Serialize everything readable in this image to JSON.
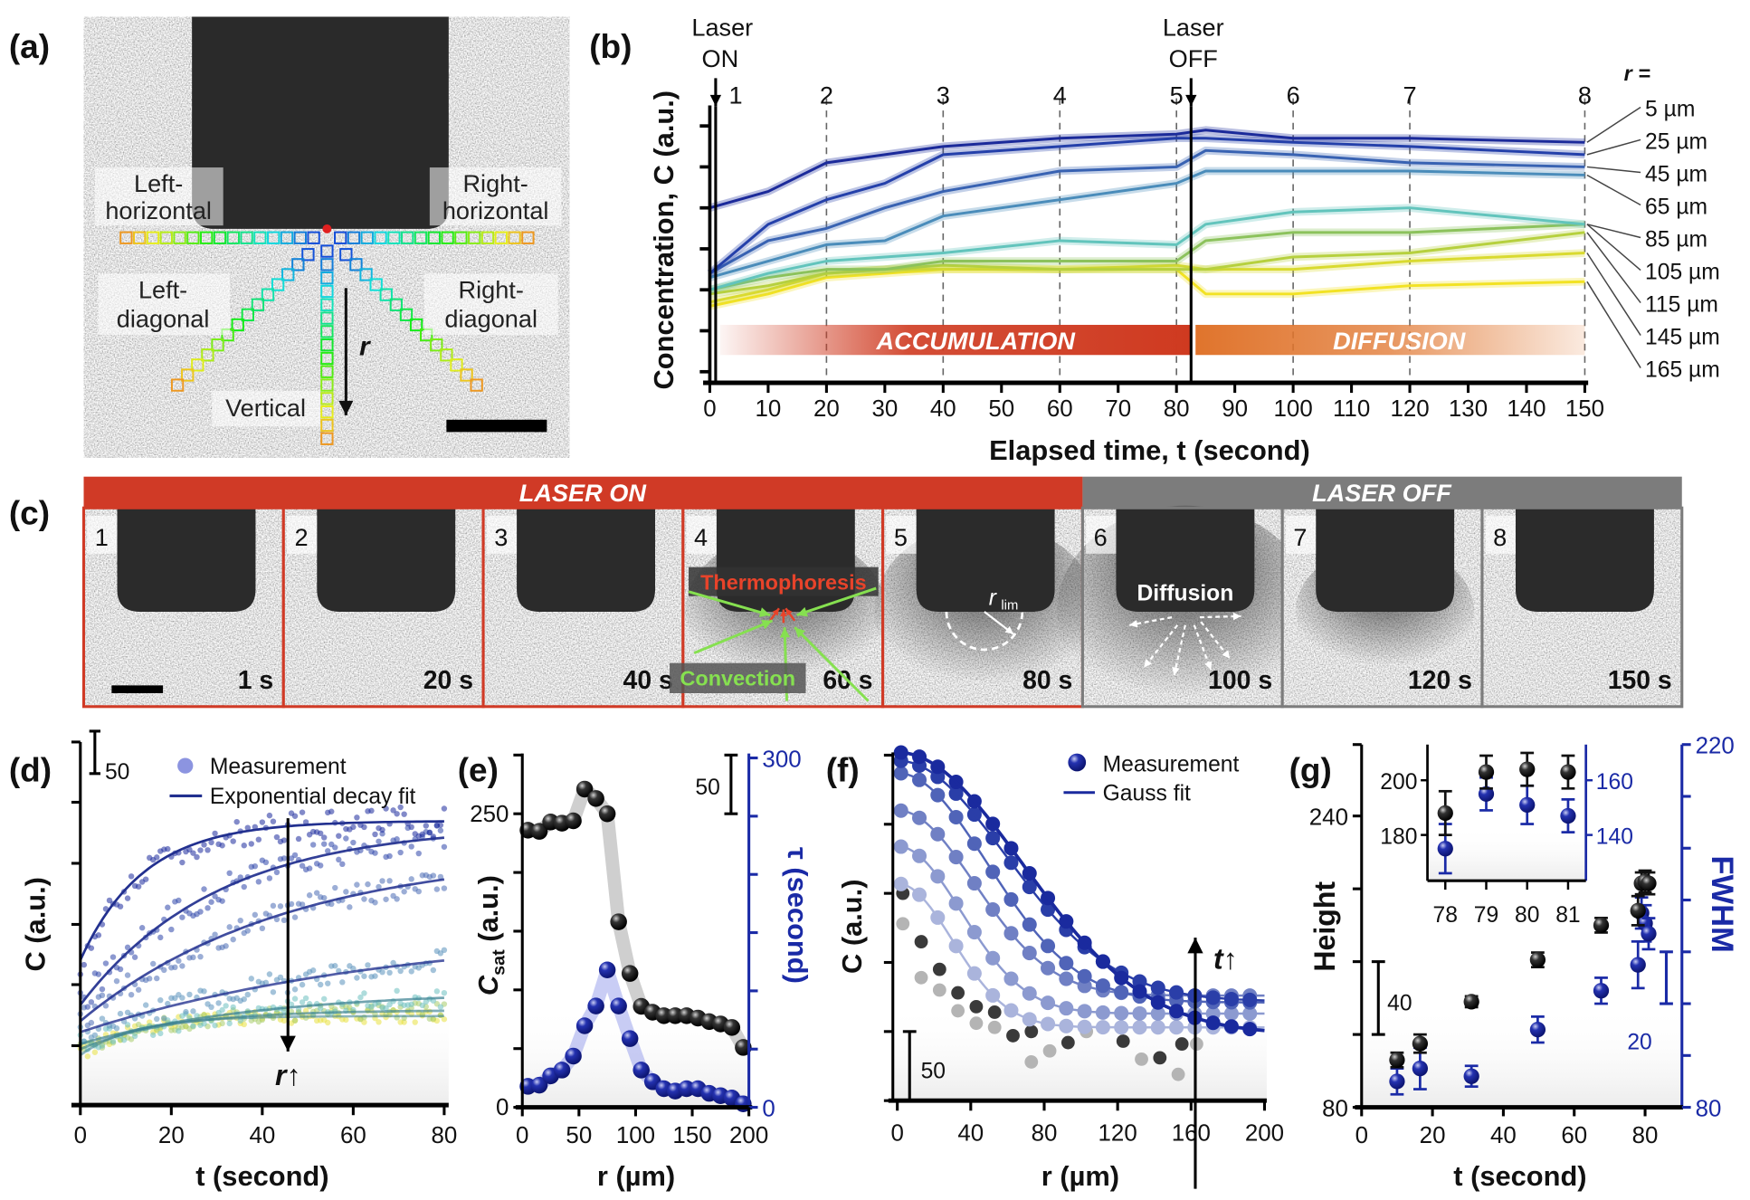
{
  "panel_labels": {
    "a": "(a)",
    "b": "(b)",
    "c": "(c)",
    "d": "(d)",
    "e": "(e)",
    "f": "(f)",
    "g": "(g)"
  },
  "panel_a": {
    "labels": {
      "left_horizontal": [
        "Left-",
        "horizontal"
      ],
      "right_horizontal": [
        "Right-",
        "horizontal"
      ],
      "left_diagonal": [
        "Left-",
        "diagonal"
      ],
      "right_diagonal": [
        "Right-",
        "diagonal"
      ],
      "vertical": "Vertical",
      "r": "r"
    }
  },
  "panel_c": {
    "laser_on": "LASER ON",
    "laser_off": "LASER OFF",
    "colors": {
      "laser_on": "#d03a26",
      "laser_off": "#7c7c7c"
    },
    "frames": [
      {
        "n": "1",
        "time": "1 s"
      },
      {
        "n": "2",
        "time": "20 s"
      },
      {
        "n": "3",
        "time": "40 s"
      },
      {
        "n": "4",
        "time": "60 s"
      },
      {
        "n": "5",
        "time": "80 s"
      },
      {
        "n": "6",
        "time": "100 s"
      },
      {
        "n": "7",
        "time": "120 s"
      },
      {
        "n": "8",
        "time": "150 s"
      }
    ],
    "annotations": {
      "thermophoresis": "Thermophoresis",
      "convection": "Convection",
      "diffusion": "Diffusion",
      "r_lim": "r",
      "r_lim_sub": "lim"
    }
  },
  "chart_data": [
    {
      "panel": "b",
      "type": "line",
      "xlabel": "Elapsed time, t (second)",
      "ylabel": "Concentration, C (a.u.)",
      "xlim": [
        0,
        150
      ],
      "xticks": [
        0,
        10,
        20,
        30,
        40,
        50,
        60,
        70,
        80,
        90,
        100,
        110,
        120,
        130,
        140,
        150
      ],
      "ylim": [
        -0.27,
        6.5
      ],
      "yticks_unlabeled": [
        0,
        1,
        2,
        3,
        4,
        5,
        6
      ],
      "markers": [
        {
          "label": [
            "Laser",
            "ON"
          ],
          "t": 1
        },
        {
          "label": [
            "Laser",
            "OFF"
          ],
          "t": 82.5
        }
      ],
      "frame_markers": [
        {
          "label": "1",
          "t": 1
        },
        {
          "label": "2",
          "t": 20
        },
        {
          "label": "3",
          "t": 40
        },
        {
          "label": "4",
          "t": 60
        },
        {
          "label": "5",
          "t": 80
        },
        {
          "label": "6",
          "t": 100
        },
        {
          "label": "7",
          "t": 120
        },
        {
          "label": "8",
          "t": 150
        }
      ],
      "phases": [
        {
          "label": "ACCUMULATION",
          "from": 1,
          "to": 82.5,
          "color": "#cf3a20"
        },
        {
          "label": "DIFFUSION",
          "from": 82.5,
          "to": 150,
          "color": "#e0742c"
        }
      ],
      "legend_title": "r =",
      "x": [
        0,
        10,
        20,
        30,
        40,
        60,
        80,
        85,
        100,
        120,
        150
      ],
      "series": [
        {
          "name": "5 µm",
          "color": "#1b2a9a",
          "values": [
            4.0,
            4.4,
            5.1,
            5.3,
            5.5,
            5.7,
            5.8,
            5.9,
            5.7,
            5.7,
            5.6
          ]
        },
        {
          "name": "25 µm",
          "color": "#2440aa",
          "values": [
            2.4,
            3.6,
            4.2,
            4.6,
            5.3,
            5.5,
            5.7,
            5.7,
            5.6,
            5.5,
            5.3
          ]
        },
        {
          "name": "45 µm",
          "color": "#3862b2",
          "values": [
            2.4,
            3.2,
            3.5,
            4.0,
            4.4,
            4.9,
            5.0,
            5.4,
            5.3,
            5.1,
            5.0
          ]
        },
        {
          "name": "65 µm",
          "color": "#4a8cba",
          "values": [
            2.3,
            2.7,
            3.1,
            3.2,
            3.8,
            4.2,
            4.6,
            4.9,
            4.9,
            4.9,
            4.8
          ]
        },
        {
          "name": "85 µm",
          "color": "#62c4bc",
          "values": [
            2.0,
            2.4,
            2.7,
            2.8,
            2.9,
            3.2,
            3.1,
            3.6,
            3.9,
            4.0,
            3.6
          ]
        },
        {
          "name": "105 µm",
          "color": "#8cc25c",
          "values": [
            2.0,
            2.3,
            2.5,
            2.5,
            2.7,
            2.7,
            2.7,
            3.2,
            3.4,
            3.4,
            3.6
          ]
        },
        {
          "name": "115 µm",
          "color": "#b6d03e",
          "values": [
            1.9,
            2.1,
            2.4,
            2.5,
            2.6,
            2.5,
            2.5,
            2.5,
            2.8,
            2.9,
            3.4
          ]
        },
        {
          "name": "145 µm",
          "color": "#d9da30",
          "values": [
            1.7,
            2.0,
            2.4,
            2.5,
            2.5,
            2.5,
            2.6,
            2.5,
            2.5,
            2.7,
            2.9
          ]
        },
        {
          "name": "165 µm",
          "color": "#f2e224",
          "values": [
            1.6,
            1.9,
            2.3,
            2.4,
            2.5,
            2.5,
            2.5,
            1.9,
            1.9,
            2.1,
            2.2
          ]
        }
      ]
    },
    {
      "panel": "d",
      "type": "scatter",
      "xlabel": "t (second)",
      "ylabel": "C (a.u.)",
      "xlim": [
        0,
        80
      ],
      "xticks": [
        0,
        20,
        40,
        60,
        80
      ],
      "ylim": [
        0,
        428
      ],
      "yticks_unlabeled": [
        70,
        142,
        213,
        285,
        357
      ],
      "scale_bar": "50",
      "scale_bar_value": 50,
      "legend": [
        "Measurement",
        "Exponential decay fit"
      ],
      "arrow_label": "r↑",
      "fits": [
        {
          "c0": 171,
          "csat": 335,
          "tau": 14,
          "color": "#1c2a9c"
        },
        {
          "c0": 118,
          "csat": 330,
          "tau": 30,
          "color": "#2e46aa"
        },
        {
          "c0": 99,
          "csat": 300,
          "tau": 45,
          "color": "#4a6cb4"
        },
        {
          "c0": 86,
          "csat": 210,
          "tau": 70,
          "color": "#5a92bc"
        },
        {
          "c0": 72,
          "csat": 135,
          "tau": 40,
          "color": "#6cc0c0"
        },
        {
          "c0": 66,
          "csat": 112,
          "tau": 20,
          "color": "#a8cc6a"
        },
        {
          "c0": 59,
          "csat": 105,
          "tau": 12,
          "color": "#e8e040"
        }
      ]
    },
    {
      "panel": "e",
      "type": "scatter",
      "xlabel": "r (µm)",
      "ylabel": {
        "main": "C",
        "sub": "sat",
        "rest": " (a.u.)"
      },
      "ylabel_right": "τ (second)",
      "xlim": [
        0,
        200
      ],
      "xticks": [
        0,
        50,
        100,
        150,
        200
      ],
      "ylim_left": [
        0,
        300
      ],
      "yticks_left": [
        0,
        50,
        100,
        150,
        200,
        250
      ],
      "ytick_labels_left": {
        "0": "0",
        "250": "250"
      },
      "ylim_right": [
        0,
        300
      ],
      "yticks_right": [
        0,
        50,
        100,
        150,
        200,
        250,
        300
      ],
      "ytick_labels_right": {
        "0": "0",
        "300": "300"
      },
      "scale_bar": "50",
      "scale_bar_value": 50,
      "right_color": "#1a2aa6",
      "r": [
        5,
        15,
        25,
        35,
        45,
        55,
        65,
        75,
        85,
        95,
        105,
        115,
        125,
        135,
        145,
        155,
        165,
        175,
        185,
        195
      ],
      "series": [
        {
          "axis": "left",
          "color": "#111111",
          "values": [
            236,
            235,
            243,
            242,
            244,
            271,
            263,
            250,
            158,
            114,
            86,
            81,
            78,
            78,
            78,
            76,
            73,
            71,
            68,
            51
          ]
        },
        {
          "axis": "right",
          "color": "#1a2aa6",
          "values": [
            18,
            19,
            27,
            32,
            44,
            70,
            87,
            118,
            87,
            59,
            32,
            22,
            16,
            14,
            16,
            16,
            12,
            10,
            8,
            3
          ]
        }
      ]
    },
    {
      "panel": "f",
      "type": "scatter",
      "xlabel": "r (µm)",
      "ylabel": "C (a.u.)",
      "xlim": [
        0,
        200
      ],
      "xticks": [
        0,
        40,
        80,
        120,
        160,
        200
      ],
      "ylim": [
        0,
        255
      ],
      "yticks_unlabeled": [
        0,
        50,
        100,
        150,
        200,
        250
      ],
      "scale_bar": "50",
      "scale_bar_value": 50,
      "legend": [
        "Measurement",
        "Gauss fit"
      ],
      "arrow_label": "t↑",
      "fits": [
        {
          "base": 53,
          "amp": 104,
          "sigma": 30,
          "color": "#aab4dc"
        },
        {
          "base": 63,
          "amp": 121,
          "sigma": 35,
          "color": "#8c9ad0"
        },
        {
          "base": 76,
          "amp": 134,
          "sigma": 42,
          "color": "#7080c4"
        },
        {
          "base": 71,
          "amp": 166,
          "sigma": 49,
          "color": "#5064b8"
        },
        {
          "base": 72,
          "amp": 174,
          "sigma": 59,
          "color": "#2a3ea8"
        },
        {
          "base": 48,
          "amp": 204,
          "sigma": 68,
          "color": "#1a2a9e"
        }
      ],
      "early_measurements": [
        {
          "color": "#3a3a3a",
          "r": [
            3,
            13,
            23,
            33,
            43,
            53,
            63,
            73,
            93,
            123,
            143,
            155
          ],
          "values": [
            150,
            115,
            95,
            78,
            68,
            64,
            47,
            50,
            42,
            43,
            31,
            41
          ]
        },
        {
          "color": "#b4b4b4",
          "r": [
            3,
            13,
            23,
            33,
            43,
            53,
            73,
            83,
            103,
            133,
            153,
            163
          ],
          "values": [
            128,
            89,
            80,
            65,
            56,
            53,
            28,
            36,
            50,
            30,
            19,
            41
          ]
        }
      ]
    },
    {
      "panel": "g",
      "type": "scatter",
      "xlabel": "t (second)",
      "ylabel": "Height",
      "ylabel_right": "FWHM",
      "xlim": [
        0,
        87
      ],
      "xticks": [
        0,
        20,
        40,
        60,
        80
      ],
      "ylim_left": [
        80,
        279
      ],
      "yticks_left": [
        80,
        120,
        160,
        200,
        240
      ],
      "ytick_labels_left": {
        "80": "80",
        "240": "240"
      },
      "ylim_right": [
        80,
        220
      ],
      "yticks_right": [
        80,
        100,
        120,
        140,
        160,
        180,
        200,
        220
      ],
      "ytick_labels_right": {
        "80": "80",
        "220": "220"
      },
      "scale_bar_left": "40",
      "scale_bar_left_value": 40,
      "scale_bar_right": "20",
      "scale_bar_right_value": 20,
      "right_color": "#1a2aa6",
      "height": {
        "t": [
          10,
          16.5,
          31,
          49.7,
          67.6,
          78,
          79,
          80,
          81
        ],
        "values": [
          106,
          115,
          138,
          161,
          180,
          188,
          203,
          204,
          203
        ],
        "err": [
          4,
          5,
          3,
          4,
          4,
          8,
          6,
          6,
          6
        ]
      },
      "fwhm": {
        "t": [
          10,
          16.5,
          31,
          49.7,
          67.6,
          78,
          79,
          80,
          81
        ],
        "values": [
          90,
          95,
          92,
          110,
          125,
          135,
          155,
          151,
          147
        ],
        "err": [
          5,
          8,
          4,
          5,
          5,
          9,
          6,
          7,
          6
        ]
      },
      "inset": {
        "xlim": [
          77.6,
          81.4
        ],
        "xticks": [
          78,
          79,
          80,
          81
        ],
        "ylim_left": [
          164,
          216
        ],
        "yticks_left": [
          180,
          200
        ],
        "ylim_right": [
          124,
          176
        ],
        "yticks_right": [
          140,
          160
        ]
      }
    }
  ]
}
